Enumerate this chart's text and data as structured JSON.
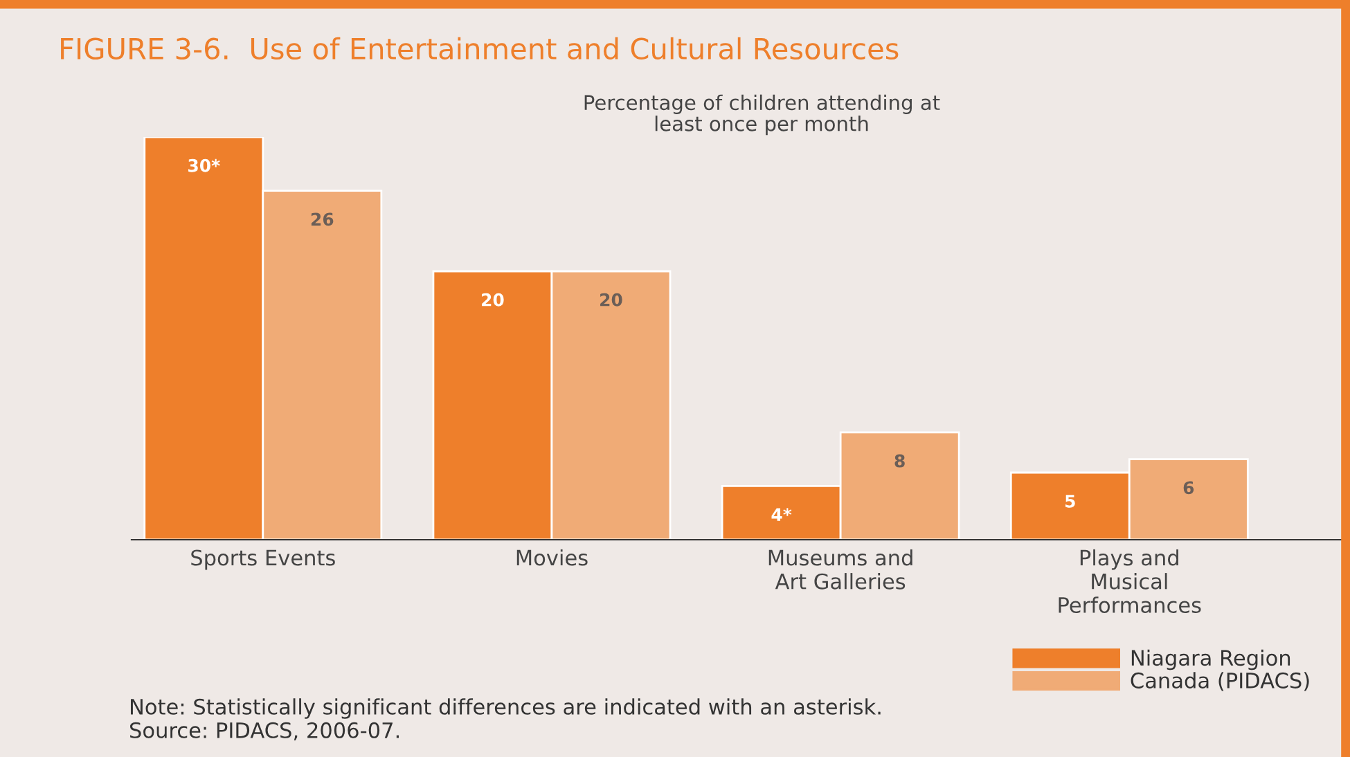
{
  "chart_data": {
    "type": "bar",
    "title": "FIGURE 3-6.  Use of Entertainment and Cultural Resources",
    "subtitle": "Percentage of children attending at\nleast once per month",
    "categories": [
      "Sports Events",
      "Movies",
      "Museums and\nArt Galleries",
      "Plays and\nMusical\nPerformances"
    ],
    "series": [
      {
        "name": "Niagara Region",
        "color": "#ee7f2b",
        "values": [
          30,
          20,
          4,
          5
        ],
        "value_labels": [
          "30*",
          "20",
          "4*",
          "5"
        ]
      },
      {
        "name": "Canada (PIDACS)",
        "color": "#f0ab76",
        "values": [
          26,
          20,
          8,
          6
        ],
        "value_labels": [
          "26",
          "20",
          "8",
          "6"
        ]
      }
    ],
    "legend": "bottom right",
    "grid": false,
    "annotations": [
      "Note: Statistically significant differences are indicated with an asterisk.",
      "Source: PIDACS, 2006-07."
    ]
  }
}
